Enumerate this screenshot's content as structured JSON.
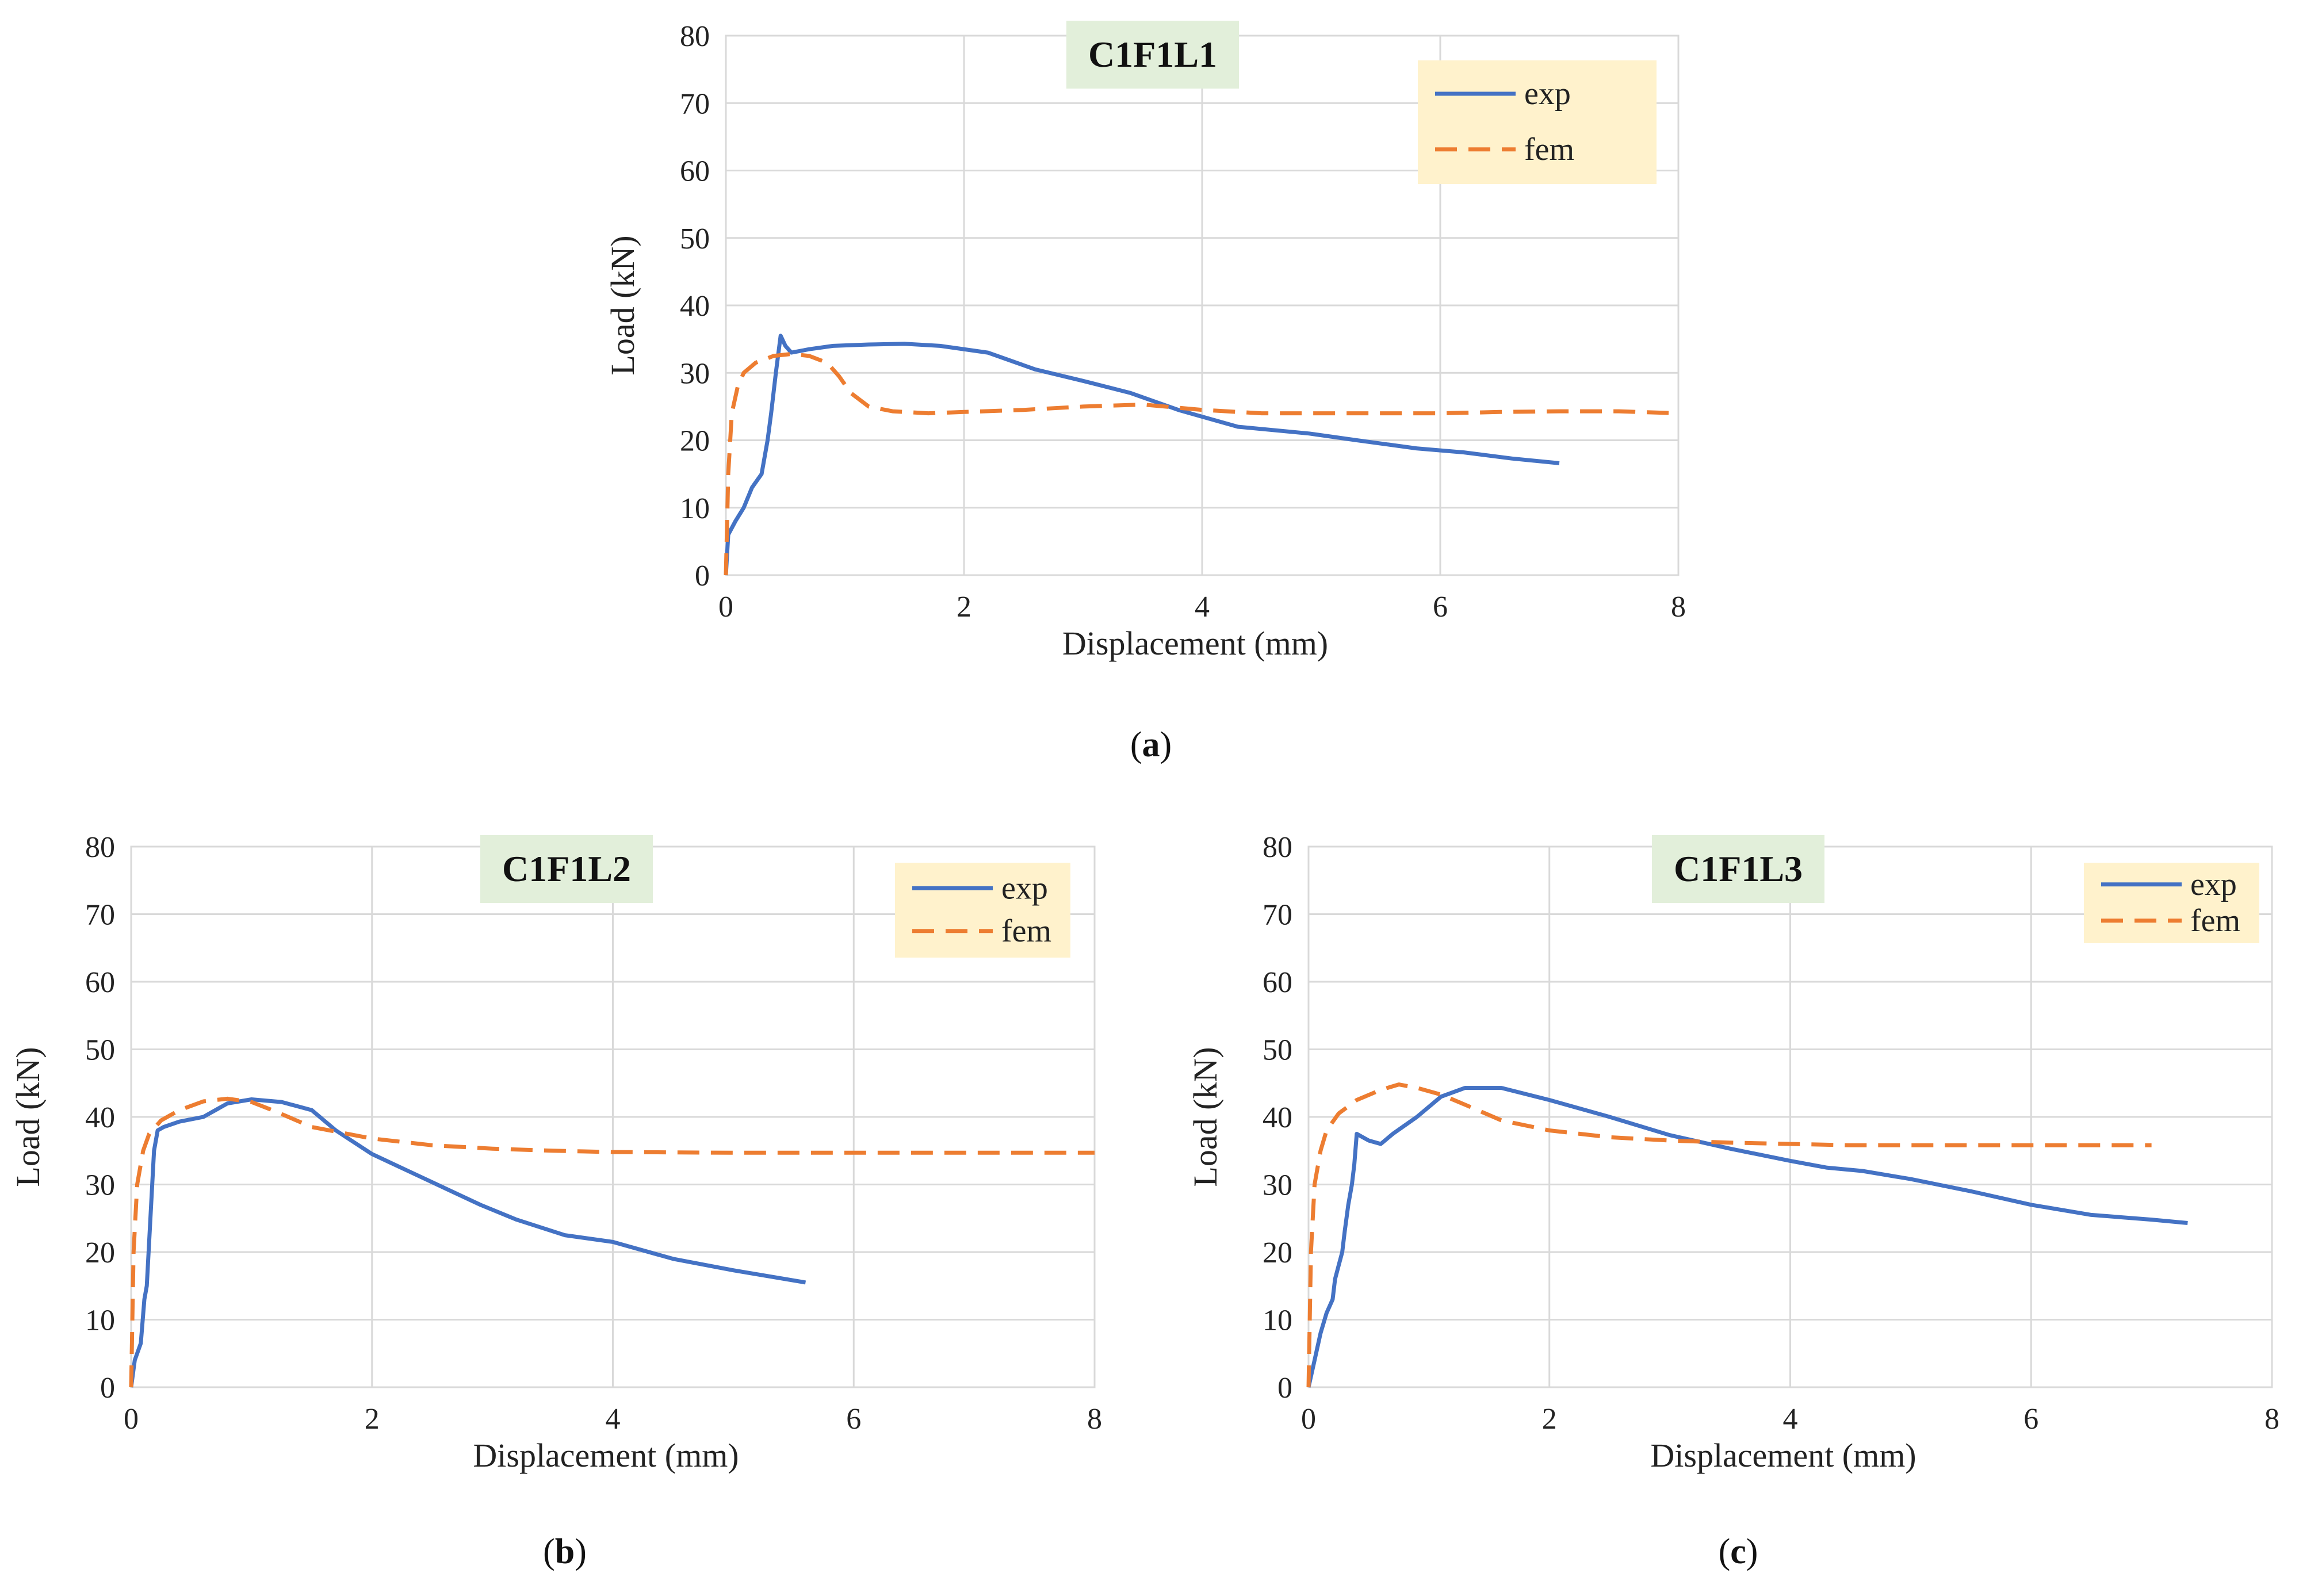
{
  "chart_data": [
    {
      "type": "line",
      "panel_label": "a",
      "title": "C1F1L1",
      "xlabel": "Displacement (mm)",
      "ylabel": "Load (kN)",
      "xlim": [
        0,
        8
      ],
      "ylim": [
        0,
        80
      ],
      "xticks": [
        0,
        2,
        4,
        6,
        8
      ],
      "yticks": [
        0,
        10,
        20,
        30,
        40,
        50,
        60,
        70,
        80
      ],
      "grid": true,
      "legend_position": "top-right",
      "series": [
        {
          "name": "exp",
          "color": "#4472C4",
          "style": "solid",
          "x": [
            0,
            0.02,
            0.08,
            0.15,
            0.22,
            0.3,
            0.35,
            0.38,
            0.42,
            0.46,
            0.5,
            0.55,
            0.7,
            0.9,
            1.2,
            1.5,
            1.8,
            2.2,
            2.6,
            3.0,
            3.4,
            3.8,
            4.0,
            4.3,
            4.9,
            5.3,
            5.8,
            6.2,
            6.6,
            7.0
          ],
          "y": [
            0,
            6,
            8,
            10,
            13,
            15,
            20,
            24,
            30,
            35.5,
            34,
            33,
            33.5,
            34,
            34.2,
            34.3,
            34,
            33,
            30.5,
            28.8,
            27,
            24.5,
            23.5,
            22,
            21,
            20,
            18.8,
            18.2,
            17.3,
            16.6
          ]
        },
        {
          "name": "fem",
          "color": "#ED7D31",
          "style": "dashed",
          "x": [
            0,
            0.02,
            0.05,
            0.1,
            0.15,
            0.25,
            0.4,
            0.55,
            0.7,
            0.85,
            0.95,
            1.05,
            1.2,
            1.4,
            1.7,
            2.0,
            2.5,
            3.0,
            3.5,
            4.0,
            4.5,
            5.0,
            5.5,
            6.0,
            6.5,
            7.0,
            7.5,
            8.0
          ],
          "y": [
            0,
            15,
            24,
            28,
            30,
            31.5,
            32.5,
            32.8,
            32.5,
            31.5,
            29.5,
            27,
            25,
            24.3,
            24,
            24.2,
            24.5,
            25,
            25.3,
            24.5,
            24,
            24,
            24,
            24,
            24.2,
            24.3,
            24.3,
            24
          ]
        }
      ]
    },
    {
      "type": "line",
      "panel_label": "b",
      "title": "C1F1L2",
      "xlabel": "Displacement (mm)",
      "ylabel": "Load (kN)",
      "xlim": [
        0,
        8
      ],
      "ylim": [
        0,
        80
      ],
      "xticks": [
        0,
        2,
        4,
        6,
        8
      ],
      "yticks": [
        0,
        10,
        20,
        30,
        40,
        50,
        60,
        70,
        80
      ],
      "grid": true,
      "legend_position": "top-right",
      "series": [
        {
          "name": "exp",
          "color": "#4472C4",
          "style": "solid",
          "x": [
            0,
            0.03,
            0.08,
            0.11,
            0.13,
            0.16,
            0.19,
            0.22,
            0.27,
            0.4,
            0.6,
            0.8,
            1.0,
            1.25,
            1.5,
            1.7,
            2.0,
            2.3,
            2.6,
            2.9,
            3.2,
            3.6,
            4.0,
            4.5,
            5.0,
            5.6
          ],
          "y": [
            0,
            4,
            6.5,
            13,
            15,
            25,
            35,
            38,
            38.5,
            39.3,
            40,
            42,
            42.6,
            42.2,
            41,
            38,
            34.5,
            32,
            29.5,
            27,
            24.8,
            22.5,
            21.5,
            19,
            17.3,
            15.5
          ]
        },
        {
          "name": "fem",
          "color": "#ED7D31",
          "style": "dashed",
          "x": [
            0,
            0.02,
            0.05,
            0.1,
            0.15,
            0.25,
            0.4,
            0.6,
            0.8,
            1.0,
            1.2,
            1.5,
            2.0,
            2.5,
            3.0,
            3.5,
            4.0,
            5.0,
            6.0,
            7.0,
            8.0
          ],
          "y": [
            0,
            20,
            30,
            35,
            37.5,
            39.5,
            41,
            42.3,
            42.7,
            42.2,
            40.8,
            38.5,
            36.8,
            35.8,
            35.3,
            35,
            34.8,
            34.7,
            34.7,
            34.7,
            34.7
          ]
        }
      ]
    },
    {
      "type": "line",
      "panel_label": "c",
      "title": "C1F1L3",
      "xlabel": "Displacement (mm)",
      "ylabel": "Load (kN)",
      "xlim": [
        0,
        8
      ],
      "ylim": [
        0,
        80
      ],
      "xticks": [
        0,
        2,
        4,
        6,
        8
      ],
      "yticks": [
        0,
        10,
        20,
        30,
        40,
        50,
        60,
        70,
        80
      ],
      "grid": true,
      "legend_position": "top-right",
      "series": [
        {
          "name": "exp",
          "color": "#4472C4",
          "style": "solid",
          "x": [
            0,
            0.05,
            0.1,
            0.15,
            0.2,
            0.22,
            0.25,
            0.28,
            0.3,
            0.33,
            0.36,
            0.38,
            0.4,
            0.45,
            0.5,
            0.6,
            0.7,
            0.9,
            1.1,
            1.3,
            1.6,
            2.0,
            2.5,
            3.0,
            3.5,
            4.0,
            4.3,
            4.6,
            5.0,
            5.5,
            6.0,
            6.5,
            7.0,
            7.3
          ],
          "y": [
            0,
            4,
            8,
            11,
            13,
            16,
            18,
            20,
            23,
            27,
            30,
            33,
            37.5,
            37,
            36.5,
            36,
            37.5,
            40,
            43,
            44.3,
            44.3,
            42.5,
            40,
            37.3,
            35.3,
            33.5,
            32.5,
            32,
            30.8,
            29,
            27,
            25.5,
            24.8,
            24.3
          ]
        },
        {
          "name": "fem",
          "color": "#ED7D31",
          "style": "dashed",
          "x": [
            0,
            0.02,
            0.05,
            0.1,
            0.15,
            0.25,
            0.4,
            0.6,
            0.75,
            0.9,
            1.1,
            1.3,
            1.6,
            2.0,
            2.5,
            3.0,
            3.5,
            4.0,
            4.5,
            5.0,
            6.0,
            7.0
          ],
          "y": [
            0,
            20,
            30,
            35,
            38,
            40.5,
            42.5,
            44,
            44.8,
            44.3,
            43.3,
            41.8,
            39.5,
            38,
            37,
            36.5,
            36.2,
            36,
            35.8,
            35.8,
            35.8,
            35.8
          ]
        }
      ]
    }
  ]
}
